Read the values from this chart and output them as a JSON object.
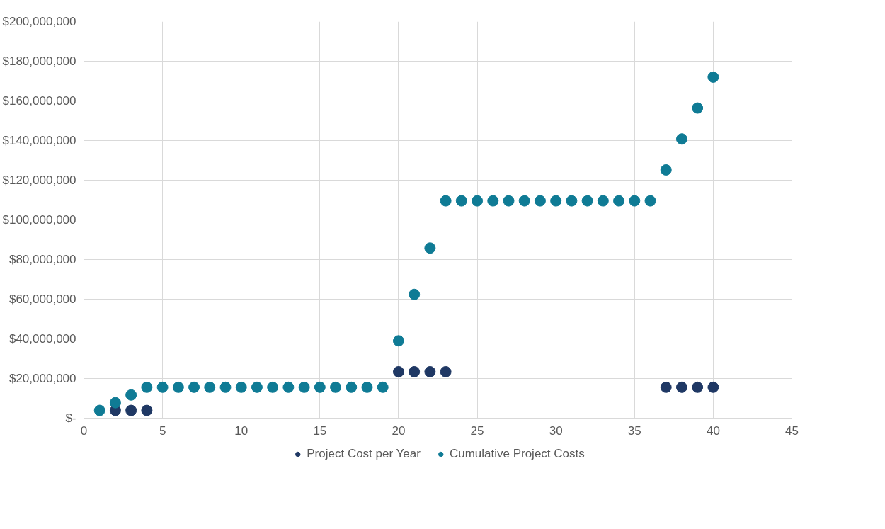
{
  "chart_data": {
    "type": "scatter",
    "xlim": [
      0,
      45
    ],
    "xticks": [
      0,
      5,
      10,
      15,
      20,
      25,
      30,
      35,
      40,
      45
    ],
    "ylim": [
      0,
      200000000
    ],
    "yticks": [
      {
        "value": 0,
        "label": "$-"
      },
      {
        "value": 20000000,
        "label": "$20,000,000"
      },
      {
        "value": 40000000,
        "label": "$40,000,000"
      },
      {
        "value": 60000000,
        "label": "$60,000,000"
      },
      {
        "value": 80000000,
        "label": "$80,000,000"
      },
      {
        "value": 100000000,
        "label": "$100,000,000"
      },
      {
        "value": 120000000,
        "label": "$120,000,000"
      },
      {
        "value": 140000000,
        "label": "$140,000,000"
      },
      {
        "value": 160000000,
        "label": "$160,000,000"
      },
      {
        "value": 180000000,
        "label": "$180,000,000"
      },
      {
        "value": 200000000,
        "label": "$200,000,000"
      }
    ],
    "grid": true,
    "legend": "bottom",
    "marker": "circle",
    "series": [
      {
        "name": "Project Cost per Year",
        "color": "#1f3864",
        "x": [
          2,
          3,
          4,
          20,
          21,
          22,
          23,
          37,
          38,
          39,
          40
        ],
        "values": [
          3900000,
          3900000,
          3900000,
          23400000,
          23400000,
          23400000,
          23400000,
          15600000,
          15600000,
          15600000,
          15600000
        ]
      },
      {
        "name": "Cumulative Project Costs",
        "color": "#0f7b95",
        "x": [
          1,
          2,
          3,
          4,
          5,
          6,
          7,
          8,
          9,
          10,
          11,
          12,
          13,
          14,
          15,
          16,
          17,
          18,
          19,
          20,
          21,
          22,
          23,
          24,
          25,
          26,
          27,
          28,
          29,
          30,
          31,
          32,
          33,
          34,
          35,
          36,
          37,
          38,
          39,
          40
        ],
        "values": [
          3900000,
          7800000,
          11700000,
          15600000,
          15600000,
          15600000,
          15600000,
          15600000,
          15600000,
          15600000,
          15600000,
          15600000,
          15600000,
          15600000,
          15600000,
          15600000,
          15600000,
          15600000,
          15600000,
          39000000,
          62400000,
          85800000,
          109600000,
          109600000,
          109600000,
          109600000,
          109600000,
          109600000,
          109600000,
          109600000,
          109600000,
          109600000,
          109600000,
          109600000,
          109600000,
          109600000,
          125200000,
          140800000,
          156400000,
          172000000
        ]
      }
    ]
  }
}
